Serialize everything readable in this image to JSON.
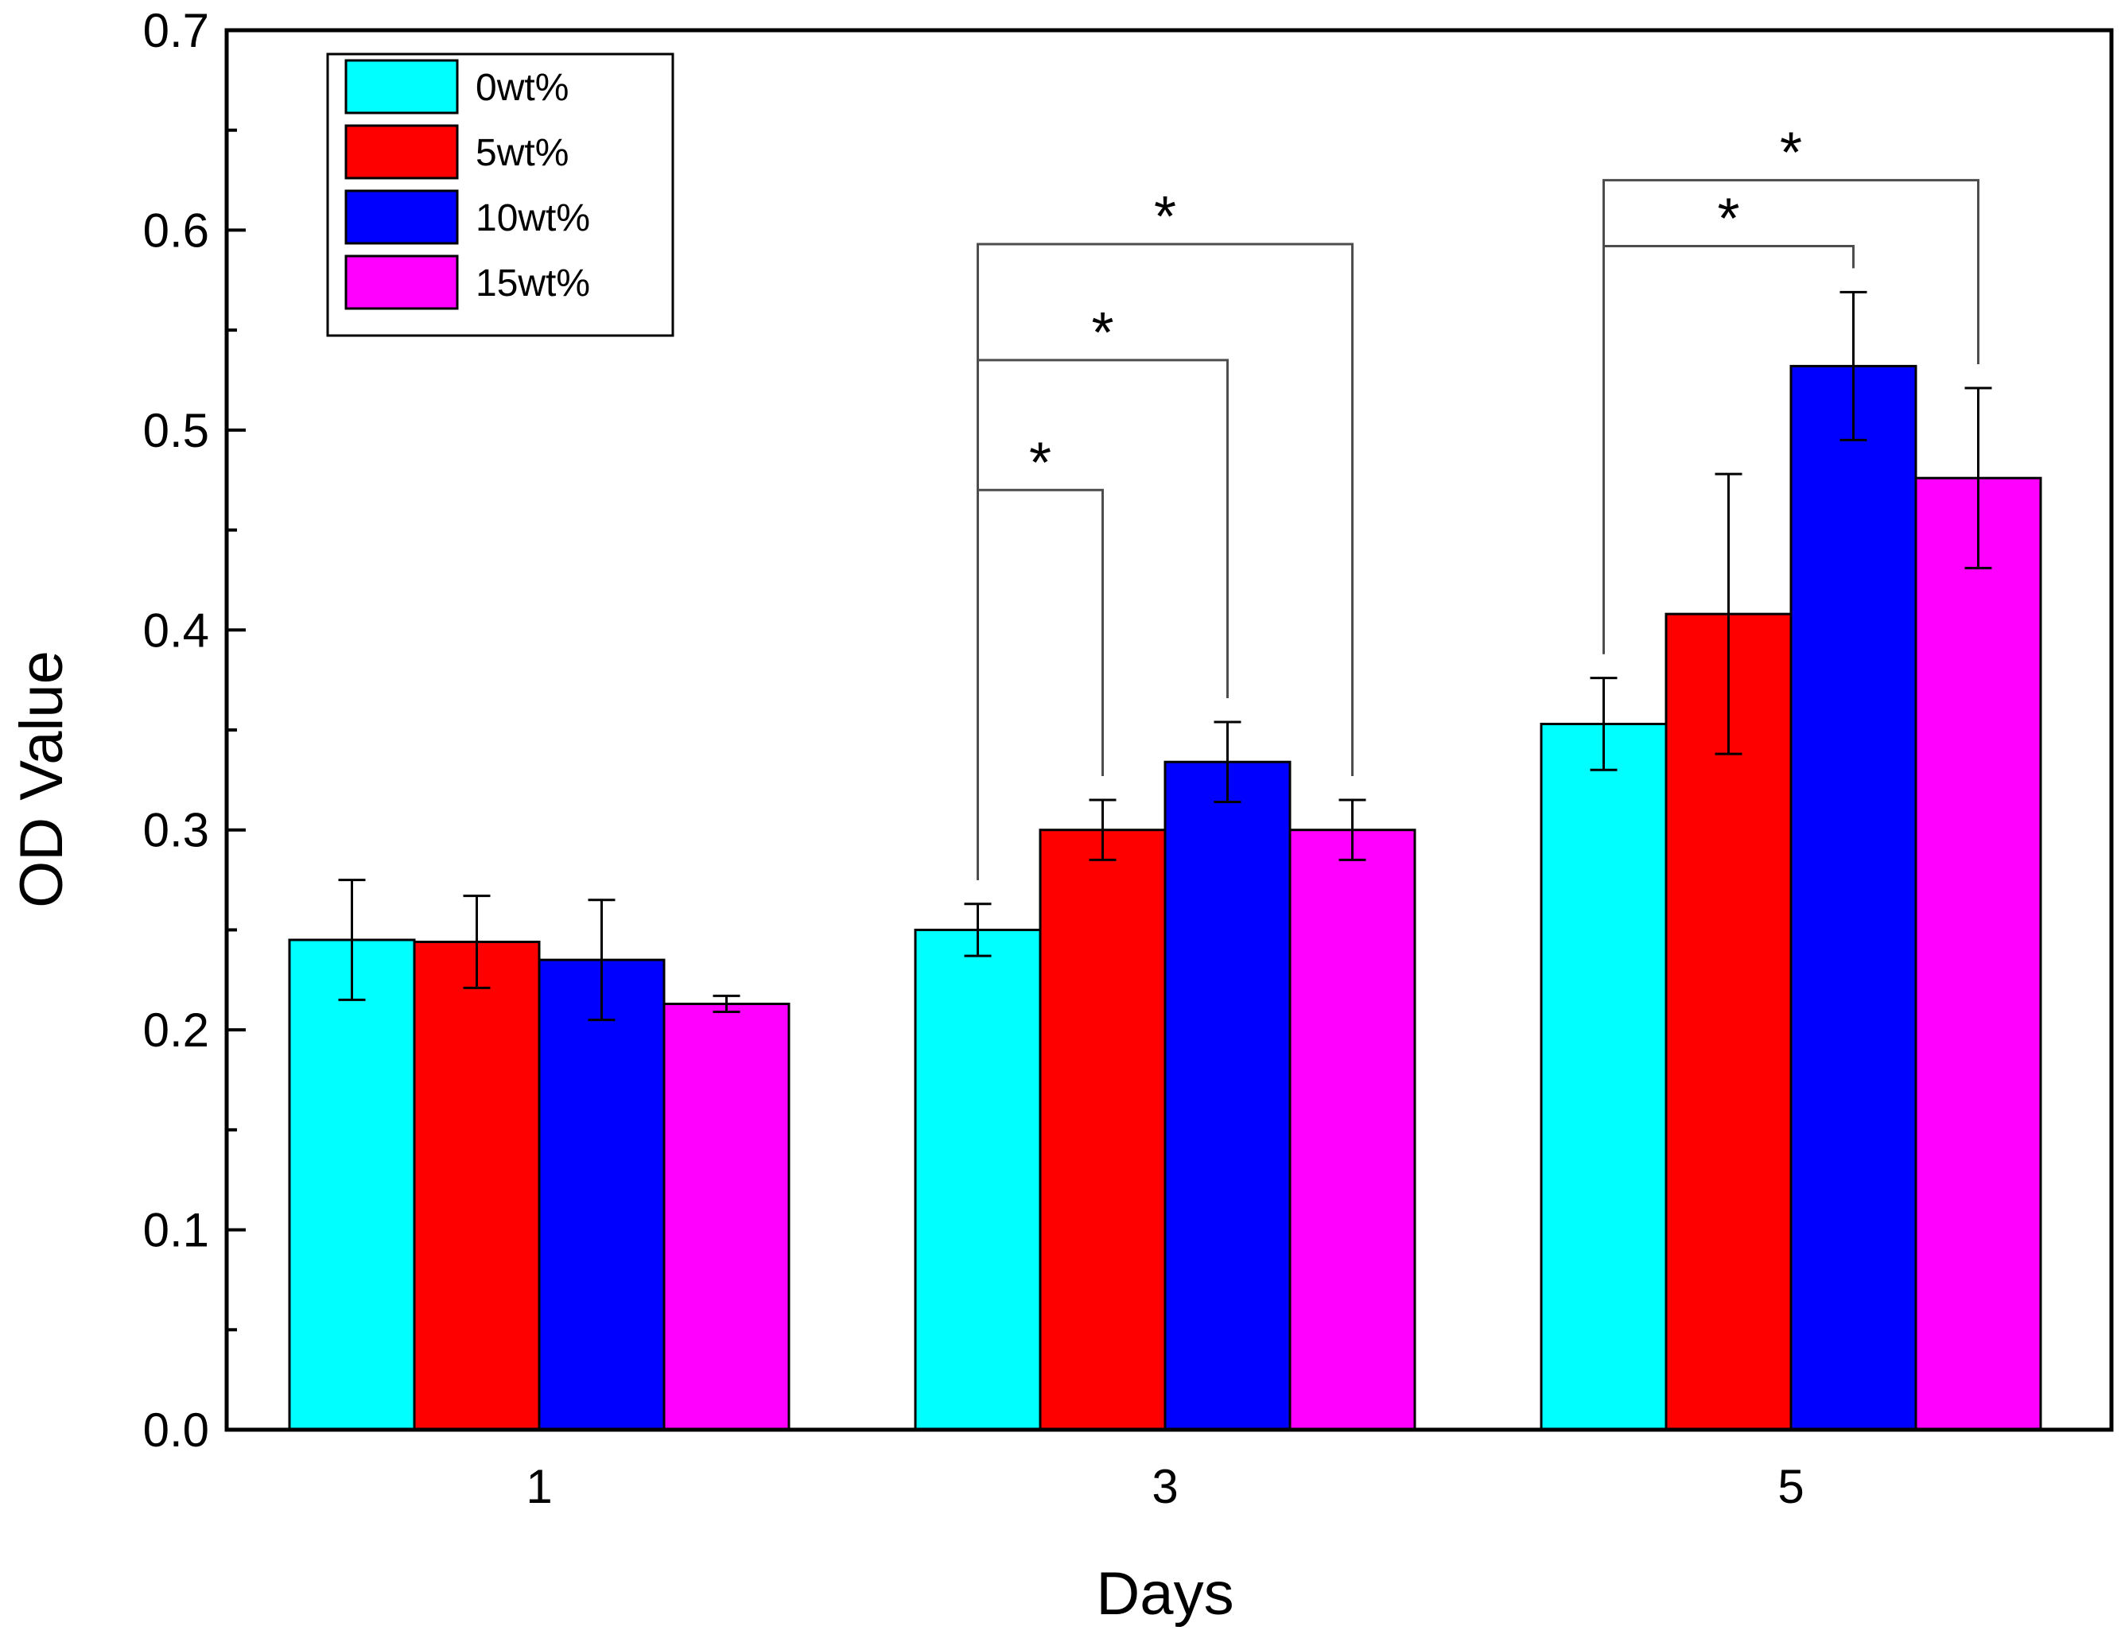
{
  "chart_data": {
    "type": "bar",
    "title": "",
    "xlabel": "Days",
    "ylabel": "OD Value",
    "ylim": [
      0,
      0.7
    ],
    "yticks": [
      "0.0",
      "0.1",
      "0.2",
      "0.3",
      "0.4",
      "0.5",
      "0.6",
      "0.7"
    ],
    "categories": [
      "1",
      "3",
      "5"
    ],
    "legend_position": "top-left",
    "series": [
      {
        "name": "0wt%",
        "color": "#00FFFF",
        "values": [
          0.245,
          0.25,
          0.353
        ],
        "errors": [
          0.03,
          0.013,
          0.023
        ]
      },
      {
        "name": "5wt%",
        "color": "#FF0000",
        "values": [
          0.244,
          0.3,
          0.408
        ],
        "errors": [
          0.023,
          0.015,
          0.07
        ]
      },
      {
        "name": "10wt%",
        "color": "#0000FF",
        "values": [
          0.235,
          0.334,
          0.532
        ],
        "errors": [
          0.03,
          0.02,
          0.037
        ]
      },
      {
        "name": "15wt%",
        "color": "#FF00FF",
        "values": [
          0.213,
          0.3,
          0.476
        ],
        "errors": [
          0.004,
          0.015,
          0.045
        ]
      }
    ],
    "significance": [
      {
        "category": 1,
        "from_series": 0,
        "to_series": 1,
        "level": 0.47,
        "label": "*"
      },
      {
        "category": 1,
        "from_series": 0,
        "to_series": 2,
        "level": 0.535,
        "label": "*"
      },
      {
        "category": 1,
        "from_series": 0,
        "to_series": 3,
        "level": 0.593,
        "label": "*"
      },
      {
        "category": 2,
        "from_series": 0,
        "to_series": 2,
        "level": 0.592,
        "label": "*"
      },
      {
        "category": 2,
        "from_series": 0,
        "to_series": 3,
        "level": 0.625,
        "label": "*"
      }
    ]
  }
}
